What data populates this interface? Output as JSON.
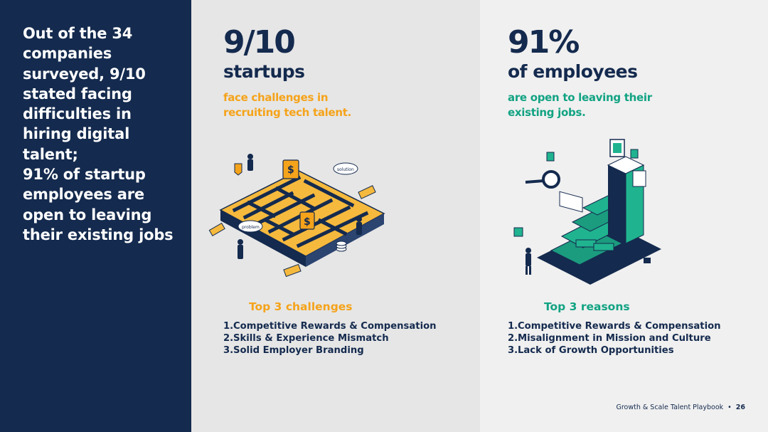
{
  "left": {
    "lines": [
      "Out of the 34",
      "companies",
      "surveyed, 9/10",
      "stated facing",
      "difficulties in",
      "hiring digital",
      "talent;",
      "91% of startup",
      "employees are",
      "open to leaving",
      "their existing jobs"
    ]
  },
  "startups": {
    "stat": "9/10",
    "subtitle": "startups",
    "desc_lines": [
      "face challenges in",
      "recruiting tech talent."
    ],
    "list_title": "Top 3 challenges",
    "items": [
      {
        "num": "1.",
        "text": "Competitive Rewards & Compensation"
      },
      {
        "num": "2.",
        "text": "Skills & Experience Mismatch"
      },
      {
        "num": "3.",
        "text": "Solid Employer Branding"
      }
    ]
  },
  "employees": {
    "stat": "91%",
    "subtitle": "of employees",
    "desc_lines": [
      "are open to leaving their",
      "existing jobs."
    ],
    "list_title": "Top 3 reasons",
    "items": [
      {
        "num": "1.",
        "text": "Competitive Rewards & Compensation"
      },
      {
        "num": "2.",
        "text": "Misalignment in Mission and Culture"
      },
      {
        "num": "3.",
        "text": "Lack of Growth Opportunities"
      }
    ]
  },
  "illustration_labels": {
    "problem": "problem",
    "solution": "solution"
  },
  "footer": {
    "text": "Growth & Scale Talent Playbook",
    "separator": "•",
    "page": "26"
  },
  "colors": {
    "navy": "#142a4e",
    "orange": "#f5a31a",
    "green": "#12a383"
  },
  "icons": {
    "maze": "maze-illustration",
    "staircase": "staircase-illustration"
  }
}
